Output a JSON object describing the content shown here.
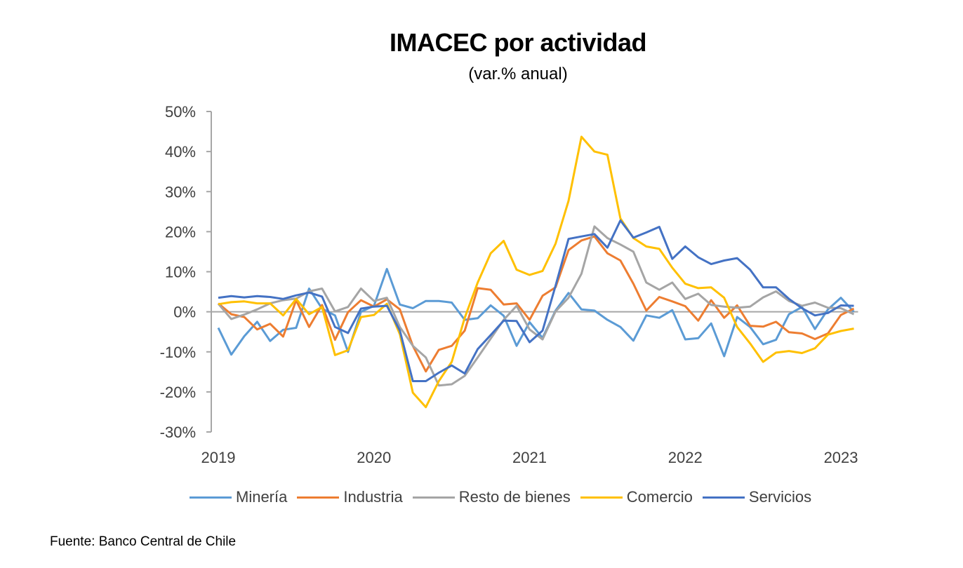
{
  "chart_data": {
    "type": "line",
    "title": "IMACEC por actividad",
    "subtitle": "(var.% anual)",
    "xlabel": "",
    "ylabel": "",
    "ylim": [
      -30,
      50
    ],
    "yticks": [
      50,
      40,
      30,
      20,
      10,
      0,
      -10,
      -20,
      -30
    ],
    "ytick_labels": [
      "50%",
      "40%",
      "30%",
      "20%",
      "10%",
      "0%",
      "-10%",
      "-20%",
      "-30%"
    ],
    "x_start": "2019-01",
    "x_frequency": "monthly",
    "xtick_labels": [
      "2019",
      "2020",
      "2021",
      "2022",
      "2023"
    ],
    "xtick_indices": [
      0,
      12,
      24,
      36,
      48
    ],
    "grid": false,
    "legend_position": "bottom",
    "series": [
      {
        "name": "Minería",
        "color": "#5B9BD5",
        "values": [
          -4.0,
          -10.7,
          -6.1,
          -2.5,
          -7.3,
          -4.5,
          -4.0,
          5.8,
          0.8,
          -0.9,
          -10.0,
          0.0,
          1.5,
          10.7,
          1.8,
          0.9,
          2.7,
          2.7,
          2.3,
          -2.0,
          -1.6,
          1.6,
          -1.0,
          -8.5,
          -2.6,
          -6.5,
          0.3,
          4.7,
          0.6,
          0.3,
          -2.0,
          -3.8,
          -7.2,
          -0.9,
          -1.5,
          0.4,
          -6.9,
          -6.6,
          -2.9,
          -11.1,
          -1.3,
          -3.8,
          -8.1,
          -7.0,
          -0.6,
          1.2,
          -4.3,
          0.6,
          3.5,
          0.0
        ]
      },
      {
        "name": "Industria",
        "color": "#ED7D31",
        "values": [
          2.1,
          -0.6,
          -1.3,
          -4.4,
          -3.0,
          -6.2,
          2.9,
          -3.8,
          1.7,
          -7.0,
          -0.1,
          2.9,
          1.3,
          3.1,
          0.6,
          -8.5,
          -14.9,
          -9.5,
          -8.5,
          -4.7,
          5.9,
          5.5,
          1.8,
          2.1,
          -2.0,
          4.0,
          6.1,
          15.4,
          17.8,
          18.8,
          14.6,
          12.8,
          7.0,
          0.3,
          3.7,
          2.6,
          1.4,
          -2.2,
          2.9,
          -1.5,
          1.6,
          -3.5,
          -3.7,
          -2.5,
          -5.1,
          -5.4,
          -6.8,
          -5.4,
          -0.8,
          0.8
        ]
      },
      {
        "name": "Resto de bienes",
        "color": "#A5A5A5",
        "values": [
          2.0,
          -1.8,
          -0.7,
          0.6,
          2.1,
          2.9,
          3.3,
          5.1,
          5.8,
          0.1,
          1.2,
          5.8,
          2.7,
          3.5,
          -3.8,
          -8.5,
          -11.4,
          -18.4,
          -18.1,
          -16.0,
          -11.4,
          -6.7,
          -2.0,
          1.5,
          -4.4,
          -6.9,
          0.1,
          3.5,
          9.5,
          21.3,
          18.4,
          16.8,
          15.0,
          7.3,
          5.5,
          7.3,
          3.2,
          4.5,
          1.7,
          1.3,
          1.0,
          1.3,
          3.6,
          5.1,
          2.7,
          1.5,
          2.3,
          1.0,
          0.9,
          -0.6
        ]
      },
      {
        "name": "Comercio",
        "color": "#FFC000",
        "values": [
          1.9,
          2.4,
          2.6,
          2.1,
          2.1,
          -0.9,
          3.2,
          -0.6,
          1.2,
          -10.8,
          -9.6,
          -1.3,
          -0.8,
          2.0,
          -5.6,
          -20.2,
          -23.8,
          -17.3,
          -12.5,
          -1.5,
          7.3,
          14.6,
          17.7,
          10.5,
          9.2,
          10.2,
          17.0,
          27.7,
          43.7,
          40.0,
          39.2,
          23.3,
          18.4,
          16.3,
          15.7,
          11.0,
          7.0,
          5.9,
          6.1,
          3.5,
          -3.8,
          -7.9,
          -12.5,
          -10.2,
          -9.8,
          -10.3,
          -9.1,
          -5.7,
          -4.8,
          -4.2
        ]
      },
      {
        "name": "Servicios",
        "color": "#4472C4",
        "values": [
          3.5,
          3.9,
          3.6,
          3.9,
          3.7,
          3.2,
          4.1,
          4.8,
          3.8,
          -3.8,
          -5.3,
          0.8,
          1.3,
          1.5,
          -4.7,
          -17.3,
          -17.3,
          -15.2,
          -13.4,
          -15.4,
          -9.3,
          -5.8,
          -2.2,
          -2.3,
          -7.6,
          -4.7,
          6.5,
          18.2,
          18.8,
          19.4,
          16.0,
          22.8,
          18.5,
          19.8,
          21.2,
          13.2,
          16.3,
          13.6,
          11.9,
          12.8,
          13.4,
          10.5,
          6.1,
          6.1,
          3.2,
          0.9,
          -0.9,
          -0.3,
          1.6,
          1.5
        ]
      }
    ],
    "source": "Fuente: Banco Central de Chile"
  }
}
